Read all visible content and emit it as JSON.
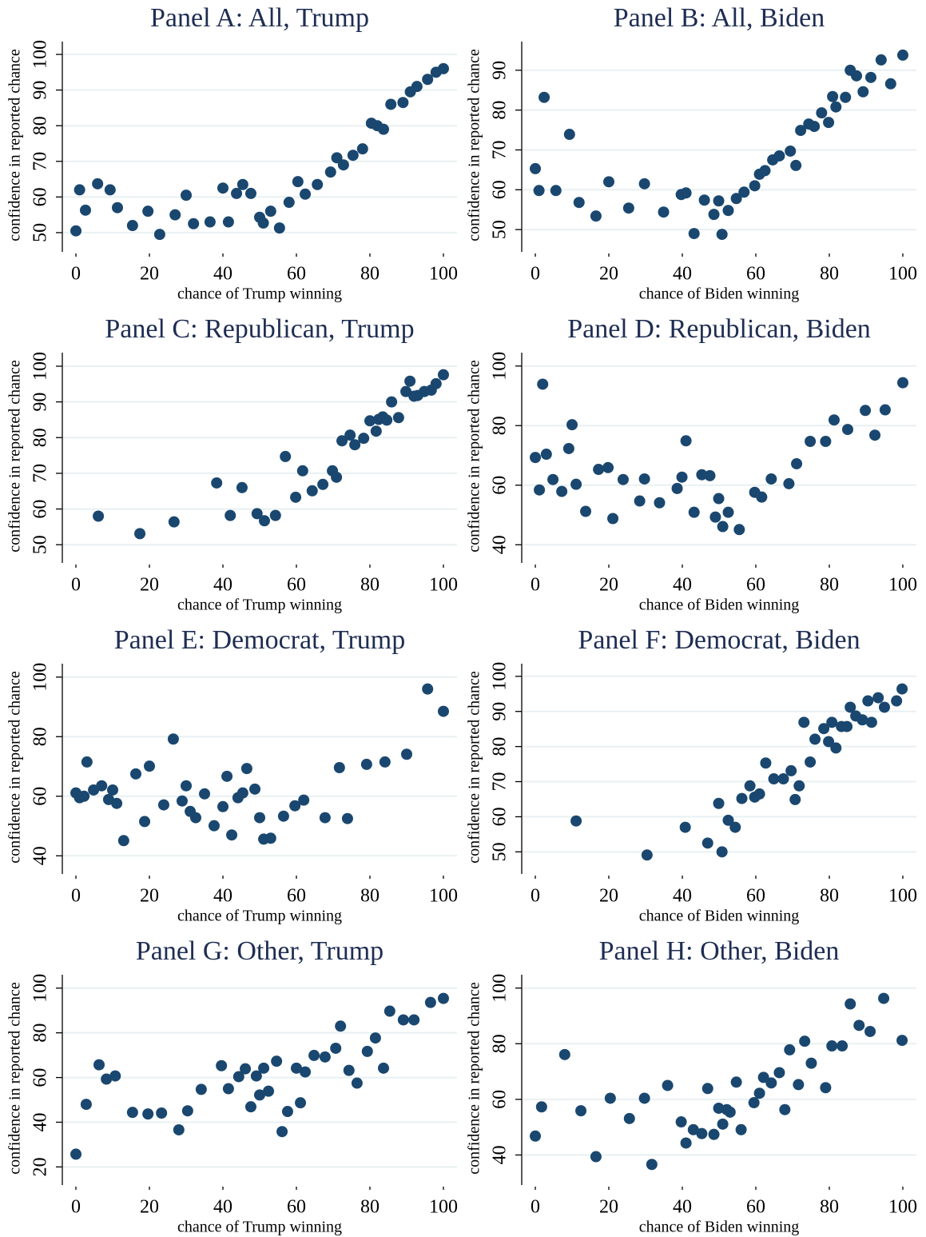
{
  "chart_data": [
    {
      "type": "scatter",
      "title": "Panel A: All, Trump",
      "xlabel": "chance of Trump winning",
      "ylabel": "confidence in reported chance",
      "color": "#1a476f",
      "grid": true,
      "xlim": [
        -3.7,
        103.7
      ],
      "xticks": [
        0,
        20,
        40,
        60,
        80,
        100
      ],
      "ylim": [
        44.6,
        103.6
      ],
      "yticks": [
        50,
        60,
        70,
        80,
        90,
        100
      ],
      "x": [
        0,
        1,
        2.6,
        5.9,
        9.3,
        11.3,
        15.4,
        19.6,
        22.8,
        27,
        30,
        32,
        36.5,
        40,
        41.5,
        43.7,
        45.4,
        47.6,
        50,
        51,
        53,
        55.4,
        58,
        60.4,
        62.4,
        65.7,
        69.3,
        71,
        72.8,
        75.4,
        78,
        80.4,
        82,
        83.7,
        85.7,
        89,
        91,
        92.8,
        95.7,
        98,
        100
      ],
      "values": [
        50.5,
        62,
        56.3,
        63.7,
        62,
        57,
        52,
        56,
        49.5,
        55,
        60.5,
        52.5,
        53,
        62.5,
        53,
        61,
        63.5,
        61,
        54.3,
        52.7,
        56,
        51.3,
        58.5,
        64.3,
        60.8,
        63.5,
        67,
        71,
        69,
        71.7,
        73.5,
        80.7,
        80,
        79,
        86,
        86.5,
        89.5,
        91,
        93,
        95,
        96
      ]
    },
    {
      "type": "scatter",
      "title": "Panel B: All, Biden",
      "xlabel": "chance of Biden winning",
      "ylabel": "confidence in reported chance",
      "color": "#1a476f",
      "grid": true,
      "xlim": [
        -3.7,
        103.7
      ],
      "xticks": [
        0,
        20,
        40,
        60,
        80,
        100
      ],
      "ylim": [
        44.4,
        97.2
      ],
      "yticks": [
        50,
        60,
        70,
        80,
        90
      ],
      "x": [
        0,
        1,
        2.4,
        5.6,
        9.3,
        11.9,
        16.5,
        20,
        25.4,
        29.7,
        34.9,
        39.7,
        41,
        43.2,
        46,
        48.6,
        49.9,
        50.8,
        52.5,
        54.7,
        56.8,
        59.7,
        61,
        62.5,
        64.6,
        66.4,
        69.4,
        70.9,
        72.2,
        74.4,
        75.9,
        77.9,
        79.8,
        80.9,
        81.8,
        84.4,
        85.7,
        87.4,
        89.2,
        91.3,
        94.1,
        96.7,
        100
      ],
      "values": [
        65.3,
        59.8,
        83.2,
        59.8,
        73.9,
        56.8,
        53.4,
        62,
        55.4,
        61.5,
        54.4,
        58.8,
        59.2,
        49,
        57.4,
        53.8,
        57.2,
        48.8,
        54.8,
        57.8,
        59.4,
        61,
        63.9,
        64.8,
        67.5,
        68.5,
        69.7,
        66.1,
        74.9,
        76.5,
        75.9,
        79.3,
        76.9,
        83.4,
        80.8,
        83.2,
        90,
        88.6,
        84.6,
        88.2,
        92.6,
        86.6,
        93.8
      ]
    },
    {
      "type": "scatter",
      "title": "Panel C: Republican, Trump",
      "xlabel": "chance of Trump winning",
      "ylabel": "confidence in reported chance",
      "color": "#1a476f",
      "grid": true,
      "xlim": [
        -3.7,
        103.7
      ],
      "xticks": [
        0,
        20,
        40,
        60,
        80,
        100
      ],
      "ylim": [
        44.9,
        103.8
      ],
      "yticks": [
        50,
        60,
        70,
        80,
        90,
        100
      ],
      "x": [
        6.1,
        17.4,
        26.7,
        38.3,
        42,
        45.2,
        49.3,
        51.3,
        54.3,
        57,
        59.8,
        61.7,
        64.3,
        67.2,
        69.8,
        70.9,
        72.4,
        74.6,
        75.9,
        78.3,
        80,
        81.7,
        82.4,
        83.5,
        84.6,
        85.9,
        87.8,
        89.8,
        90.9,
        92,
        93,
        94.8,
        96.7,
        98,
        100
      ],
      "values": [
        58,
        53.1,
        56.4,
        67.3,
        58.2,
        66,
        58.7,
        56.7,
        58.2,
        74.7,
        63.3,
        70.7,
        65.1,
        66.9,
        70.7,
        68.9,
        79.1,
        80.7,
        78,
        79.8,
        84.7,
        81.8,
        85.1,
        85.8,
        84.9,
        90,
        85.6,
        92.9,
        95.8,
        91.6,
        91.8,
        92.9,
        93.3,
        95.1,
        97.6
      ]
    },
    {
      "type": "scatter",
      "title": "Panel D: Republican, Biden",
      "xlabel": "chance of Biden winning",
      "ylabel": "confidence in reported chance",
      "color": "#1a476f",
      "grid": true,
      "xlim": [
        -3.7,
        103.7
      ],
      "xticks": [
        0,
        20,
        40,
        60,
        80,
        100
      ],
      "ylim": [
        33.9,
        104.5
      ],
      "yticks": [
        40,
        60,
        80,
        100
      ],
      "x": [
        0,
        1.1,
        2,
        3,
        4.8,
        7.2,
        9.1,
        10,
        11.1,
        13.7,
        17.2,
        19.8,
        21.1,
        23.9,
        28.4,
        29.7,
        33.8,
        38.6,
        39.9,
        41,
        43.2,
        45.3,
        47.5,
        49,
        49.9,
        51,
        52.5,
        55.5,
        59.7,
        61.6,
        64.2,
        69,
        71.1,
        74.8,
        79,
        81.3,
        85,
        89.8,
        92.4,
        95.2,
        100
      ],
      "values": [
        69.3,
        58.4,
        93.9,
        70.4,
        61.9,
        57.9,
        72.3,
        80.3,
        60.3,
        51.2,
        65.3,
        65.9,
        48.8,
        61.9,
        54.7,
        62.1,
        54.1,
        58.9,
        62.7,
        74.9,
        50.9,
        63.5,
        63.2,
        49.3,
        55.5,
        46.1,
        50.9,
        45.1,
        57.6,
        56,
        62.1,
        60.5,
        67.2,
        74.7,
        74.7,
        81.9,
        78.7,
        85.1,
        76.8,
        85.3,
        94.4
      ]
    },
    {
      "type": "scatter",
      "title": "Panel E: Democrat, Trump",
      "xlabel": "chance of Trump winning",
      "ylabel": "confidence in reported chance",
      "color": "#1a476f",
      "grid": true,
      "xlim": [
        -3.7,
        103.7
      ],
      "xticks": [
        0,
        20,
        40,
        60,
        80,
        100
      ],
      "ylim": [
        33.9,
        104.5
      ],
      "yticks": [
        40,
        60,
        80,
        100
      ],
      "x": [
        0,
        1,
        2.2,
        3,
        4.8,
        7,
        8.9,
        10,
        11.1,
        13,
        16.3,
        18.7,
        20,
        23.9,
        26.5,
        28.9,
        30,
        31.1,
        32.6,
        35,
        37.6,
        40,
        41.1,
        42.4,
        44.1,
        45.4,
        46.5,
        48.7,
        50,
        51.1,
        53,
        56.5,
        59.6,
        62,
        67.8,
        71.7,
        73.9,
        79.1,
        84.1,
        90,
        95.7,
        100
      ],
      "values": [
        61.1,
        59.5,
        60,
        71.5,
        62.1,
        63.5,
        58.9,
        62.1,
        57.6,
        45.1,
        67.5,
        51.5,
        70.1,
        57.1,
        79.2,
        58.4,
        63.5,
        54.9,
        52.8,
        60.8,
        50.1,
        56.5,
        66.7,
        47,
        59.5,
        61.1,
        69.3,
        62.4,
        52.8,
        45.6,
        45.9,
        53.3,
        56.8,
        58.7,
        52.8,
        69.6,
        52.5,
        70.7,
        71.5,
        74.1,
        96,
        88.5
      ]
    },
    {
      "type": "scatter",
      "title": "Panel F: Democrat, Biden",
      "xlabel": "chance of Biden winning",
      "ylabel": "confidence in reported chance",
      "color": "#1a476f",
      "grid": true,
      "xlim": [
        -3.7,
        103.7
      ],
      "xticks": [
        0,
        20,
        40,
        60,
        80,
        100
      ],
      "ylim": [
        43.7,
        103.6
      ],
      "yticks": [
        50,
        60,
        70,
        80,
        90,
        100
      ],
      "x": [
        11.1,
        30.4,
        40.8,
        46.9,
        49.9,
        50.8,
        52.5,
        54.4,
        56.2,
        58.4,
        59.7,
        61,
        62.7,
        64.9,
        67.5,
        69.6,
        70.7,
        71.8,
        73.1,
        74.8,
        76.1,
        78.5,
        79.8,
        80.7,
        81.8,
        83.3,
        84.8,
        85.7,
        87.2,
        89,
        90.5,
        91.5,
        93.3,
        95,
        98.3,
        99.8
      ],
      "values": [
        58.8,
        49.1,
        57,
        52.5,
        63.8,
        50,
        59,
        57,
        65.2,
        68.8,
        65.6,
        66.5,
        75.3,
        70.8,
        70.8,
        73.1,
        64.9,
        68.8,
        86.9,
        75.6,
        82.1,
        85.1,
        81.4,
        86.9,
        79.6,
        85.7,
        85.7,
        91.2,
        88.7,
        87.6,
        93,
        86.9,
        93.9,
        91.2,
        93,
        96.4
      ]
    },
    {
      "type": "scatter",
      "title": "Panel G: Other, Trump",
      "xlabel": "chance of Trump winning",
      "ylabel": "confidence in reported chance",
      "color": "#1a476f",
      "grid": true,
      "xlim": [
        -3.7,
        103.7
      ],
      "xticks": [
        0,
        20,
        40,
        60,
        80,
        100
      ],
      "ylim": [
        11.9,
        106
      ],
      "yticks": [
        20,
        40,
        60,
        80,
        100
      ],
      "x": [
        0,
        2.8,
        6.3,
        8.3,
        10.7,
        15.4,
        19.6,
        23.3,
        28,
        30.4,
        34.1,
        39.6,
        41.5,
        44.3,
        46.1,
        47.6,
        49.1,
        50,
        51.1,
        52.4,
        54.6,
        56.1,
        57.6,
        60,
        61.1,
        62.4,
        64.8,
        67.8,
        70.7,
        72,
        74.3,
        76.5,
        79.3,
        81.5,
        83.7,
        85.4,
        89.1,
        92,
        96.5,
        100
      ],
      "values": [
        25.7,
        48,
        65.7,
        59.3,
        60.7,
        44.4,
        43.7,
        44.1,
        36.6,
        45.1,
        54.7,
        65.3,
        55,
        60.4,
        63.9,
        46.9,
        60.7,
        52.2,
        64.2,
        53.9,
        67.3,
        35.8,
        44.8,
        64.2,
        48.7,
        62.5,
        69.9,
        69.2,
        73.1,
        83,
        63.2,
        57.5,
        71.7,
        77.7,
        64.2,
        89.7,
        85.8,
        85.8,
        93.6,
        95.4
      ]
    },
    {
      "type": "scatter",
      "title": "Panel H: Other, Biden",
      "xlabel": "chance of Biden winning",
      "ylabel": "confidence in reported chance",
      "color": "#1a476f",
      "grid": true,
      "xlim": [
        -3.7,
        103.7
      ],
      "xticks": [
        0,
        20,
        40,
        60,
        80,
        100
      ],
      "ylim": [
        29.2,
        104.8
      ],
      "yticks": [
        40,
        60,
        80,
        100
      ],
      "x": [
        0,
        1.7,
        8,
        12.4,
        16.5,
        20.4,
        25.6,
        29.7,
        31.7,
        36,
        39.7,
        41,
        43,
        45.3,
        46.9,
        48.6,
        49.9,
        51,
        52.1,
        53,
        54.7,
        56,
        59.5,
        61,
        62.1,
        64.2,
        66.4,
        67.9,
        69.2,
        71.6,
        73.3,
        75.1,
        79,
        80.7,
        83.5,
        85.7,
        88.1,
        91.1,
        94.8,
        99.8
      ],
      "values": [
        46.8,
        57.3,
        76.1,
        55.9,
        39.4,
        60.4,
        53.1,
        60.4,
        36.6,
        65,
        51.9,
        44.3,
        49.1,
        47.7,
        63.9,
        47.4,
        56.8,
        51.1,
        56.3,
        55.4,
        66.2,
        49.1,
        58.8,
        62.2,
        67.9,
        65.9,
        69.6,
        56.3,
        77.8,
        65.3,
        80.9,
        73,
        64.2,
        79.2,
        79.2,
        94.3,
        86.6,
        84.4,
        96.3,
        81.2
      ]
    }
  ]
}
